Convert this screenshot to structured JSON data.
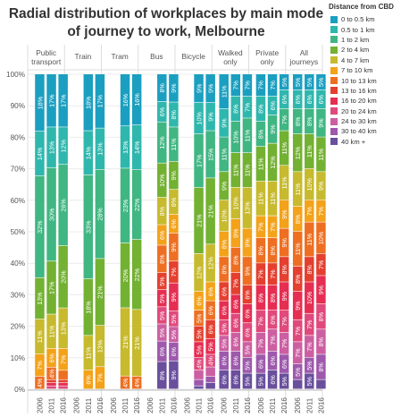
{
  "title": "Radial distribution of workplaces by main mode of journey to work, Melbourne",
  "legend_title": "Distance from CBD",
  "chart_data": {
    "type": "bar",
    "stacked": true,
    "normalized": true,
    "panels": [
      "Public transport",
      "Train",
      "Tram",
      "Bus",
      "Bicycle",
      "Walked only",
      "Private only",
      "All journeys"
    ],
    "years": [
      "2006",
      "2011",
      "2016"
    ],
    "yticks": [
      "0%",
      "10%",
      "20%",
      "30%",
      "40%",
      "50%",
      "60%",
      "70%",
      "80%",
      "90%",
      "100%"
    ],
    "ylim": [
      0,
      100
    ],
    "bands": [
      "0 to 0.5 km",
      "0.5 to 1 km",
      "1 to 2 km",
      "2 to 4 km",
      "4 to 7 km",
      "7 to 10 km",
      "10 to 13 km",
      "13 to 16 km",
      "16 to 20 km",
      "20 to 24 km",
      "24 to 30 km",
      "30 to 40 km",
      "40 km +"
    ],
    "band_colors": [
      "#1b9fc0",
      "#2fb7ad",
      "#40b682",
      "#73b132",
      "#c7ba2e",
      "#f3a21a",
      "#ee6f22",
      "#e43f2f",
      "#e62e52",
      "#e0497c",
      "#cc5fa2",
      "#9d59ac",
      "#6a4f9d"
    ],
    "values": [
      [
        [
          18,
          14,
          32,
          13,
          11,
          7,
          4,
          0,
          0,
          0,
          0,
          0,
          0
        ],
        [
          17,
          13,
          30,
          17,
          11,
          6,
          4,
          1,
          1,
          1,
          0,
          0,
          0
        ],
        [
          17,
          12,
          26,
          20,
          13,
          7,
          3,
          1,
          1,
          1,
          0,
          0,
          0
        ]
      ],
      [
        [
          0,
          0,
          0,
          0,
          0,
          0,
          0,
          0,
          0,
          0,
          0,
          0,
          0
        ],
        [
          18,
          14,
          33,
          18,
          11,
          6,
          0,
          0,
          0,
          0,
          0,
          0,
          0
        ],
        [
          17,
          13,
          28,
          21,
          13,
          7,
          0,
          0,
          0,
          0,
          0,
          0,
          0
        ]
      ],
      [
        [
          0,
          0,
          0,
          0,
          0,
          0,
          0,
          0,
          0,
          0,
          0,
          0,
          0
        ],
        [
          16,
          13,
          23,
          20,
          21,
          0,
          4,
          0,
          0,
          0,
          0,
          0,
          0
        ],
        [
          16,
          14,
          22,
          22,
          21,
          0,
          4,
          0,
          0,
          0,
          0,
          0,
          0
        ]
      ],
      [
        [
          0,
          0,
          0,
          0,
          0,
          0,
          0,
          0,
          0,
          0,
          0,
          0,
          0
        ],
        [
          8,
          6,
          12,
          10,
          8,
          6,
          8,
          5,
          5,
          5,
          5,
          6,
          8
        ],
        [
          9,
          8,
          11,
          9,
          8,
          6,
          9,
          7,
          9,
          5,
          5,
          6,
          9
        ]
      ],
      [
        [
          0,
          0,
          0,
          0,
          0,
          0,
          0,
          0,
          0,
          0,
          0,
          0,
          0
        ],
        [
          9,
          10,
          17,
          21,
          12,
          6,
          5,
          5,
          5,
          4,
          3,
          2,
          1
        ],
        [
          9,
          9,
          15,
          21,
          12,
          6,
          6,
          6,
          5,
          4,
          3,
          2,
          2
        ]
      ],
      [
        [
          11,
          9,
          11,
          9,
          10,
          8,
          8,
          6,
          6,
          5,
          5,
          6,
          6
        ],
        [
          7,
          8,
          10,
          11,
          10,
          9,
          8,
          7,
          6,
          6,
          6,
          6,
          6
        ],
        [
          7,
          7,
          11,
          11,
          13,
          9,
          9,
          6,
          6,
          6,
          5,
          5,
          5
        ]
      ],
      [
        [
          7,
          8,
          8,
          11,
          11,
          7,
          8,
          7,
          8,
          7,
          7,
          6,
          5
        ],
        [
          7,
          6,
          9,
          12,
          11,
          7,
          8,
          7,
          8,
          6,
          7,
          6,
          6
        ],
        [
          5,
          6,
          7,
          11,
          11,
          9,
          9,
          8,
          9,
          7,
          7,
          6,
          5
        ]
      ],
      [
        [
          5,
          6,
          8,
          12,
          11,
          8,
          11,
          8,
          9,
          7,
          7,
          5,
          3
        ],
        [
          5,
          6,
          8,
          11,
          10,
          7,
          11,
          8,
          10,
          7,
          7,
          5,
          5
        ],
        [
          5,
          6,
          9,
          11,
          9,
          7,
          10,
          7,
          9,
          8,
          8,
          8,
          3
        ]
      ]
    ]
  }
}
